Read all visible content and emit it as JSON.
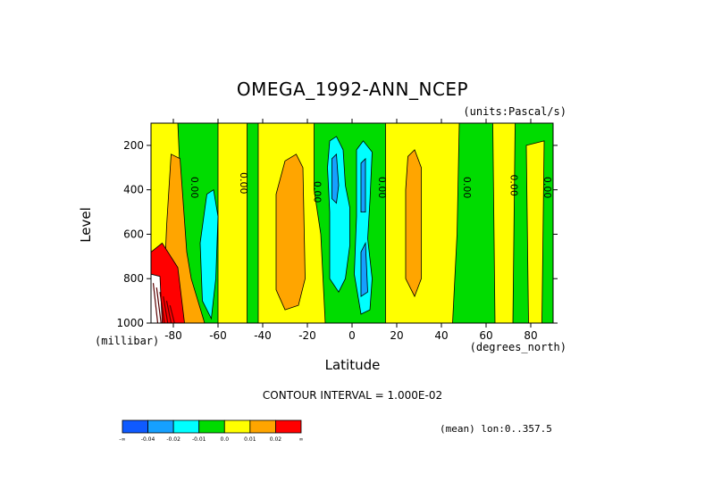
{
  "title": "OMEGA_1992-ANN_NCEP",
  "units_label": "(units:Pascal/s)",
  "contour_interval_text": "CONTOUR INTERVAL = 1.000E-02",
  "meta_text": "(mean) lon:0..357.5",
  "colors": {
    "levels": [
      "#0f5aff",
      "#16a0ff",
      "#00ffff",
      "#00dc00",
      "#ffff00",
      "#ffa500",
      "#ff0000"
    ],
    "white": "#ffffff",
    "dark": "#5a0000"
  },
  "chart_data": {
    "type": "heatmap",
    "title": "OMEGA_1992-ANN_NCEP",
    "subtitle": "(units:Pascal/s)",
    "xlabel": "Latitude",
    "xunit": "(degrees_north)",
    "ylabel": "Level",
    "yunit": "(millibar)",
    "xlim": [
      -90,
      90
    ],
    "ylim": [
      1000,
      100
    ],
    "x_ticks": [
      -80,
      -60,
      -40,
      -20,
      0,
      20,
      40,
      60,
      80
    ],
    "x_tick_labels": [
      "-80",
      "-60",
      "-40",
      "-20",
      "0",
      "20",
      "40",
      "60",
      "80"
    ],
    "y_ticks": [
      200,
      400,
      600,
      800,
      1000
    ],
    "y_tick_labels": [
      "200",
      "400",
      "600",
      "800",
      "1000"
    ],
    "contour_labels": [
      {
        "text": "0.00",
        "lat": -72,
        "level": 390
      },
      {
        "text": "0.00",
        "lat": -50,
        "level": 370
      },
      {
        "text": "0.00",
        "lat": -17,
        "level": 410
      },
      {
        "text": "0.00",
        "lat": 12,
        "level": 390
      },
      {
        "text": "0.00",
        "lat": 50,
        "level": 390
      },
      {
        "text": "0.00",
        "lat": 71,
        "level": 380
      },
      {
        "text": "0.00",
        "lat": 86,
        "level": 390
      }
    ],
    "colorbar": {
      "labels": [
        "-∞",
        "-0.04",
        "-0.02",
        "-0.01",
        "0.0",
        "0.01",
        "0.02",
        "∞"
      ]
    },
    "regions": [
      {
        "value_class": "yellow",
        "points": [
          [
            -90,
            100
          ],
          [
            -78,
            100
          ],
          [
            -74,
            1000
          ],
          [
            -90,
            1000
          ]
        ]
      },
      {
        "value_class": "yellow",
        "points": [
          [
            -60,
            100
          ],
          [
            -47,
            100
          ],
          [
            -47,
            1000
          ],
          [
            -60,
            1000
          ]
        ]
      },
      {
        "value_class": "yellow",
        "points": [
          [
            -42,
            100
          ],
          [
            -17,
            100
          ],
          [
            -17,
            400
          ],
          [
            -14,
            600
          ],
          [
            -12,
            1000
          ],
          [
            -42,
            1000
          ]
        ]
      },
      {
        "value_class": "yellow",
        "points": [
          [
            15,
            100
          ],
          [
            48,
            100
          ],
          [
            47,
            600
          ],
          [
            45,
            1000
          ],
          [
            15,
            1000
          ]
        ]
      },
      {
        "value_class": "yellow",
        "points": [
          [
            63,
            100
          ],
          [
            73,
            100
          ],
          [
            72,
            1000
          ],
          [
            64,
            1000
          ]
        ]
      },
      {
        "value_class": "yellow",
        "points": [
          [
            78,
            200
          ],
          [
            86,
            180
          ],
          [
            85,
            1000
          ],
          [
            79,
            1000
          ]
        ]
      },
      {
        "value_class": "orange",
        "points": [
          [
            -81,
            240
          ],
          [
            -77,
            260
          ],
          [
            -74,
            680
          ],
          [
            -72,
            800
          ],
          [
            -66,
            1000
          ],
          [
            -79,
            1000
          ],
          [
            -84,
            800
          ],
          [
            -83,
            560
          ]
        ]
      },
      {
        "value_class": "orange",
        "points": [
          [
            -30,
            270
          ],
          [
            -25,
            240
          ],
          [
            -22,
            300
          ],
          [
            -21,
            800
          ],
          [
            -24,
            920
          ],
          [
            -30,
            940
          ],
          [
            -34,
            850
          ],
          [
            -34,
            420
          ]
        ]
      },
      {
        "value_class": "orange",
        "points": [
          [
            25,
            250
          ],
          [
            28,
            220
          ],
          [
            31,
            300
          ],
          [
            31,
            800
          ],
          [
            28,
            880
          ],
          [
            24,
            800
          ],
          [
            24,
            400
          ]
        ]
      },
      {
        "value_class": "cyan",
        "points": [
          [
            -10,
            180
          ],
          [
            -7,
            160
          ],
          [
            -4,
            220
          ],
          [
            -3,
            380
          ],
          [
            -1,
            480
          ],
          [
            -1,
            650
          ],
          [
            -3,
            800
          ],
          [
            -6,
            860
          ],
          [
            -10,
            800
          ],
          [
            -10,
            500
          ],
          [
            -11,
            300
          ]
        ]
      },
      {
        "value_class": "cyan",
        "points": [
          [
            2,
            220
          ],
          [
            5,
            180
          ],
          [
            9,
            230
          ],
          [
            8,
            450
          ],
          [
            7,
            620
          ],
          [
            9,
            800
          ],
          [
            8,
            940
          ],
          [
            4,
            960
          ],
          [
            1,
            780
          ],
          [
            2,
            520
          ]
        ]
      },
      {
        "value_class": "cyan",
        "points": [
          [
            -65,
            420
          ],
          [
            -62,
            400
          ],
          [
            -60,
            520
          ],
          [
            -61,
            800
          ],
          [
            -63,
            980
          ],
          [
            -67,
            900
          ],
          [
            -68,
            640
          ]
        ]
      },
      {
        "value_class": "blue-light",
        "points": [
          [
            -9,
            260
          ],
          [
            -7,
            240
          ],
          [
            -6,
            380
          ],
          [
            -7,
            460
          ],
          [
            -9,
            440
          ]
        ]
      },
      {
        "value_class": "blue-light",
        "points": [
          [
            4,
            280
          ],
          [
            6,
            260
          ],
          [
            6,
            500
          ],
          [
            4,
            500
          ]
        ]
      },
      {
        "value_class": "blue-light",
        "points": [
          [
            4,
            680
          ],
          [
            6,
            640
          ],
          [
            7,
            860
          ],
          [
            4,
            880
          ]
        ]
      },
      {
        "value_class": "red",
        "points": [
          [
            -90,
            680
          ],
          [
            -85,
            640
          ],
          [
            -78,
            750
          ],
          [
            -75,
            1000
          ],
          [
            -90,
            1000
          ]
        ]
      },
      {
        "value_class": "white",
        "points": [
          [
            -90,
            780
          ],
          [
            -86,
            790
          ],
          [
            -85,
            1000
          ],
          [
            -90,
            1000
          ]
        ]
      }
    ],
    "colorbar_colors": [
      "#0f5aff",
      "#16a0ff",
      "#00ffff",
      "#00dc00",
      "#ffff00",
      "#ffa500",
      "#ff0000"
    ]
  }
}
